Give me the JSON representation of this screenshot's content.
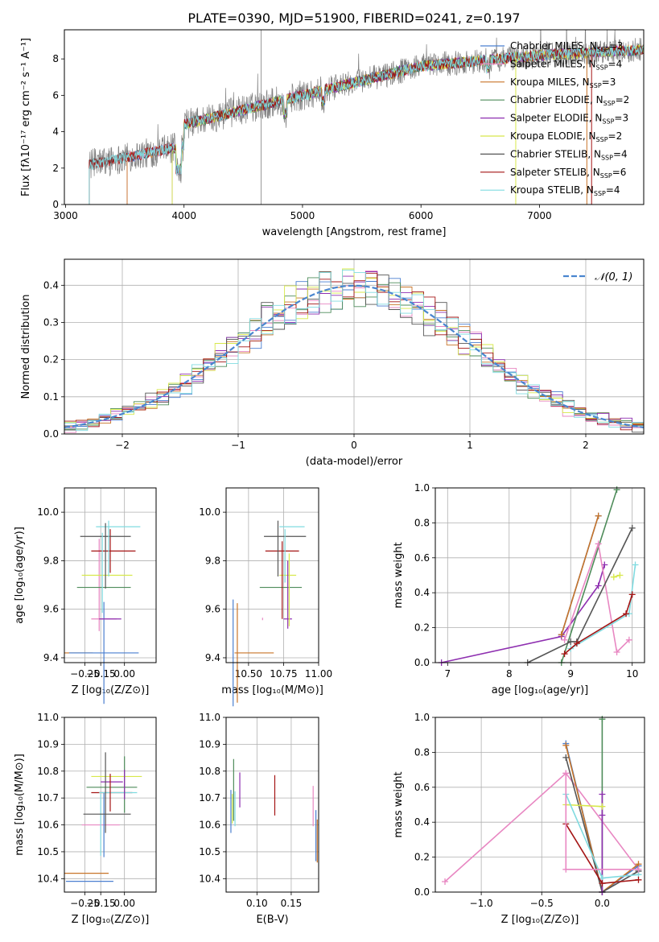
{
  "title": "PLATE=0390, MJD=51900, FIBERID=0241, z=0.197",
  "chart_data": [
    {
      "id": "spectrum",
      "type": "line",
      "xlabel": "wavelength [Angstrom, rest frame]",
      "ylabel": "Flux [fλ10⁻¹⁷ erg cm⁻² s⁻¹ A⁻¹]",
      "xlim": [
        2990,
        7880
      ],
      "ylim": [
        0,
        9.6
      ],
      "xticks": [
        "3000",
        "4000",
        "5000",
        "6000",
        "7000"
      ],
      "yticks": [
        "0",
        "2",
        "4",
        "6",
        "8"
      ],
      "legend_position": "upper-right",
      "series": [
        {
          "name": "Chabrier MILES, N",
          "sub": "SSP",
          "suffix": "=3",
          "color": "#4a7fd0",
          "start": 3520
        },
        {
          "name": "Salpeter MILES, N",
          "sub": "SSP",
          "suffix": "=4",
          "color": "#e887c2",
          "start": 3520
        },
        {
          "name": "Kroupa MILES, N",
          "sub": "SSP",
          "suffix": "=3",
          "color": "#c87428",
          "start": 3520
        },
        {
          "name": "Chabrier ELODIE, N",
          "sub": "SSP",
          "suffix": "=2",
          "color": "#4e8c5a",
          "start": 3900
        },
        {
          "name": "Salpeter ELODIE, N",
          "sub": "SSP",
          "suffix": "=3",
          "color": "#8e2fb0",
          "start": 3900
        },
        {
          "name": "Kroupa ELODIE, N",
          "sub": "SSP",
          "suffix": "=2",
          "color": "#d7e84a",
          "start": 3900
        },
        {
          "name": "Chabrier STELIB, N",
          "sub": "SSP",
          "suffix": "=4",
          "color": "#555555",
          "start": 3200
        },
        {
          "name": "Salpeter STELIB, N",
          "sub": "SSP",
          "suffix": "=6",
          "color": "#a41414",
          "start": 3200
        },
        {
          "name": "Kroupa STELIB, N",
          "sub": "SSP",
          "suffix": "=4",
          "color": "#80dbe0",
          "start": 3200
        }
      ],
      "data_color": "#808080"
    },
    {
      "id": "residuals",
      "type": "histogram",
      "xlabel": "(data-model)/error",
      "ylabel": "Normed distribution",
      "xlim": [
        -2.5,
        2.5
      ],
      "ylim": [
        0,
        0.47
      ],
      "xticks": [
        "−2",
        "−1",
        "0",
        "1",
        "2"
      ],
      "yticks": [
        "0.0",
        "0.1",
        "0.2",
        "0.3",
        "0.4"
      ],
      "legend": "𝒩(0, 1)",
      "legend_position": "upper-right",
      "grid": true
    },
    {
      "id": "age-vs-z",
      "type": "errorbar",
      "xlabel": "Z [log₁₀(Z/Z⊙)]",
      "ylabel": "age  [log₁₀(age/yr)]",
      "xlim": [
        -0.38,
        0.2
      ],
      "ylim": [
        9.38,
        10.1
      ],
      "xticks": [
        "−0.25",
        "−0.15",
        "0.00"
      ],
      "yticks": [
        "9.4",
        "9.6",
        "9.8",
        "10.0"
      ],
      "grid": true,
      "points": [
        {
          "x": -0.29,
          "y": 9.42,
          "xe": 0.09,
          "ye": 0.0,
          "color": "#c87428"
        },
        {
          "x": -0.13,
          "y": 9.42,
          "xe": 0.22,
          "ye": 0.42,
          "color": "#4a7fd0"
        },
        {
          "x": -0.13,
          "y": 9.56,
          "xe": 0.08,
          "ye": 0.0,
          "color": "#e887c2"
        },
        {
          "x": -0.16,
          "y": 9.7,
          "xe": 0.0,
          "ye": 0.38,
          "color": "#e887c2"
        },
        {
          "x": -0.13,
          "y": 9.69,
          "xe": 0.17,
          "ye": 0.0,
          "color": "#4e8c5a"
        },
        {
          "x": -0.09,
          "y": 9.56,
          "xe": 0.07,
          "ye": 0.0,
          "color": "#8e2fb0"
        },
        {
          "x": -0.09,
          "y": 9.84,
          "xe": 0.0,
          "ye": 0.18,
          "color": "#a41414"
        },
        {
          "x": -0.11,
          "y": 9.74,
          "xe": 0.16,
          "ye": 0.0,
          "color": "#d7e84a"
        },
        {
          "x": -0.12,
          "y": 9.9,
          "xe": 0.16,
          "ye": 0.0,
          "color": "#555555"
        },
        {
          "x": -0.07,
          "y": 9.84,
          "xe": 0.14,
          "ye": 0.0,
          "color": "#a41414"
        },
        {
          "x": -0.04,
          "y": 9.94,
          "xe": 0.14,
          "ye": 0.0,
          "color": "#80dbe0"
        },
        {
          "x": -0.12,
          "y": 9.82,
          "xe": 0.0,
          "ye": 0.27,
          "color": "#555555"
        },
        {
          "x": -0.1,
          "y": 9.85,
          "xe": 0.0,
          "ye": 0.23,
          "color": "#80dbe0"
        },
        {
          "x": -0.14,
          "y": 9.75,
          "xe": 0.0,
          "ye": 0.33,
          "color": "#80dbe0"
        }
      ]
    },
    {
      "id": "age-vs-mass",
      "type": "errorbar",
      "xlabel": "mass [log₁₀(M/M⊙)]",
      "ylabel": "",
      "xlim": [
        10.34,
        11.0
      ],
      "ylim": [
        9.38,
        10.1
      ],
      "xticks": [
        "10.50",
        "10.75",
        "11.00"
      ],
      "yticks": [
        "9.4",
        "9.6",
        "9.8",
        "10.0"
      ],
      "grid": true,
      "points": [
        {
          "x": 10.39,
          "y": 9.42,
          "xe": 0.0,
          "ye": 0.44,
          "color": "#4a7fd0"
        },
        {
          "x": 10.42,
          "y": 9.42,
          "xe": 0.0,
          "ye": 0.41,
          "color": "#c87428"
        },
        {
          "x": 10.54,
          "y": 9.42,
          "xe": 0.14,
          "ye": 0.0,
          "color": "#c87428"
        },
        {
          "x": 10.6,
          "y": 9.56,
          "xe": 0.0,
          "ye": 0.01,
          "color": "#e887c2"
        },
        {
          "x": 10.73,
          "y": 9.69,
          "xe": 0.15,
          "ye": 0.0,
          "color": "#4e8c5a"
        },
        {
          "x": 10.78,
          "y": 9.56,
          "xe": 0.03,
          "ye": 0.0,
          "color": "#8e2fb0"
        },
        {
          "x": 10.78,
          "y": 9.74,
          "xe": 0.06,
          "ye": 0.0,
          "color": "#d7e84a"
        },
        {
          "x": 10.76,
          "y": 9.9,
          "xe": 0.15,
          "ye": 0.0,
          "color": "#555555"
        },
        {
          "x": 10.74,
          "y": 9.84,
          "xe": 0.12,
          "ye": 0.0,
          "color": "#a41414"
        },
        {
          "x": 10.81,
          "y": 9.94,
          "xe": 0.09,
          "ye": 0.0,
          "color": "#80dbe0"
        },
        {
          "x": 10.71,
          "y": 9.85,
          "xe": 0.0,
          "ye": 0.23,
          "color": "#555555"
        },
        {
          "x": 10.76,
          "y": 9.82,
          "xe": 0.0,
          "ye": 0.22,
          "color": "#80dbe0"
        },
        {
          "x": 10.74,
          "y": 9.72,
          "xe": 0.0,
          "ye": 0.32,
          "color": "#a41414"
        },
        {
          "x": 10.78,
          "y": 9.66,
          "xe": 0.0,
          "ye": 0.28,
          "color": "#8e2fb0"
        },
        {
          "x": 10.79,
          "y": 9.68,
          "xe": 0.0,
          "ye": 0.3,
          "color": "#d7e84a"
        }
      ]
    },
    {
      "id": "mass-weight-vs-age",
      "type": "line",
      "xlabel": "age  [log₁₀(age/yr)]",
      "ylabel": "mass weight",
      "xlim": [
        6.8,
        10.2
      ],
      "ylim": [
        0,
        1.0
      ],
      "xticks": [
        "7",
        "8",
        "9",
        "10"
      ],
      "yticks": [
        "0.0",
        "0.2",
        "0.4",
        "0.6",
        "0.8",
        "1.0"
      ],
      "grid": true,
      "series": [
        {
          "color": "#8e2fb0",
          "x": [
            6.9,
            8.85,
            9.45,
            9.55
          ],
          "y": [
            0.0,
            0.15,
            0.44,
            0.56
          ]
        },
        {
          "color": "#4a7fd0",
          "x": [
            8.85,
            9.45
          ],
          "y": [
            0.16,
            0.84
          ]
        },
        {
          "color": "#c87428",
          "x": [
            8.85,
            9.45
          ],
          "y": [
            0.16,
            0.84
          ]
        },
        {
          "color": "#4e8c5a",
          "x": [
            8.85,
            9.75
          ],
          "y": [
            0.0,
            0.99
          ]
        },
        {
          "color": "#e887c2",
          "x": [
            8.9,
            9.45,
            9.75,
            9.95
          ],
          "y": [
            0.13,
            0.68,
            0.06,
            0.13
          ]
        },
        {
          "color": "#555555",
          "x": [
            8.3,
            9.0,
            9.1,
            10.0
          ],
          "y": [
            0.0,
            0.12,
            0.12,
            0.77
          ]
        },
        {
          "color": "#80dbe0",
          "x": [
            9.0,
            9.95,
            10.05
          ],
          "y": [
            0.08,
            0.28,
            0.56
          ]
        },
        {
          "color": "#a41414",
          "x": [
            8.9,
            9.1,
            9.9,
            10.0
          ],
          "y": [
            0.05,
            0.11,
            0.28,
            0.39
          ]
        },
        {
          "color": "#d7e84a",
          "x": [
            9.7,
            9.8
          ],
          "y": [
            0.49,
            0.5
          ]
        }
      ]
    },
    {
      "id": "mass-vs-z",
      "type": "errorbar",
      "xlabel": "Z [log₁₀(Z/Z⊙)]",
      "ylabel": "mass [log₁₀(M/M⊙)]",
      "xlim": [
        -0.38,
        0.2
      ],
      "ylim": [
        10.35,
        11.0
      ],
      "xticks": [
        "−0.25",
        "−0.15",
        "0.00"
      ],
      "yticks": [
        "10.4",
        "10.5",
        "10.6",
        "10.7",
        "10.8",
        "10.9",
        "11.0"
      ],
      "grid": true,
      "points": [
        {
          "x": -0.22,
          "y": 10.39,
          "xe": 0.15,
          "ye": 0.0,
          "color": "#4a7fd0"
        },
        {
          "x": -0.24,
          "y": 10.42,
          "xe": 0.14,
          "ye": 0.0,
          "color": "#c87428"
        },
        {
          "x": -0.15,
          "y": 10.6,
          "xe": 0.12,
          "ye": 0.0,
          "color": "#e887c2"
        },
        {
          "x": -0.15,
          "y": 10.6,
          "xe": 0.0,
          "ye": 0.23,
          "color": "#80dbe0"
        },
        {
          "x": -0.13,
          "y": 10.6,
          "xe": 0.0,
          "ye": 0.24,
          "color": "#4a7fd0"
        },
        {
          "x": -0.11,
          "y": 10.64,
          "xe": 0.15,
          "ye": 0.0,
          "color": "#555555"
        },
        {
          "x": -0.08,
          "y": 10.74,
          "xe": 0.16,
          "ye": 0.0,
          "color": "#4e8c5a"
        },
        {
          "x": -0.08,
          "y": 10.72,
          "xe": 0.13,
          "ye": 0.0,
          "color": "#a41414"
        },
        {
          "x": -0.08,
          "y": 10.76,
          "xe": 0.07,
          "ye": 0.0,
          "color": "#8e2fb0"
        },
        {
          "x": -0.05,
          "y": 10.78,
          "xe": 0.16,
          "ye": 0.0,
          "color": "#d7e84a"
        },
        {
          "x": -0.04,
          "y": 10.72,
          "xe": 0.12,
          "ye": 0.0,
          "color": "#80dbe0"
        },
        {
          "x": -0.09,
          "y": 10.72,
          "xe": 0.0,
          "ye": 0.14,
          "color": "#a41414"
        },
        {
          "x": -0.12,
          "y": 10.72,
          "xe": 0.0,
          "ye": 0.3,
          "color": "#555555"
        },
        {
          "x": 0.0,
          "y": 10.75,
          "xe": 0.0,
          "ye": 0.21,
          "color": "#4e8c5a"
        },
        {
          "x": 0.0,
          "y": 10.75,
          "xe": 0.0,
          "ye": 0.11,
          "color": "#8e2fb0"
        }
      ]
    },
    {
      "id": "mass-vs-ebv",
      "type": "errorbar",
      "xlabel": "E(B-V)",
      "ylabel": "",
      "xlim": [
        0.055,
        0.19
      ],
      "ylim": [
        10.35,
        11.0
      ],
      "xticks": [
        "0.10",
        "0.15"
      ],
      "yticks": [
        "10.4",
        "10.5",
        "10.6",
        "10.7",
        "10.8",
        "10.9",
        "11.0"
      ],
      "grid": true,
      "points": [
        {
          "x": 0.062,
          "y": 10.65,
          "xe": 0.0,
          "ye": 0.16,
          "color": "#4a7fd0"
        },
        {
          "x": 0.064,
          "y": 10.66,
          "xe": 0.0,
          "ye": 0.11,
          "color": "#d7e84a"
        },
        {
          "x": 0.066,
          "y": 10.73,
          "xe": 0.0,
          "ye": 0.23,
          "color": "#4e8c5a"
        },
        {
          "x": 0.068,
          "y": 10.66,
          "xe": 0.0,
          "ye": 0.13,
          "color": "#80dbe0"
        },
        {
          "x": 0.075,
          "y": 10.73,
          "xe": 0.0,
          "ye": 0.13,
          "color": "#8e2fb0"
        },
        {
          "x": 0.126,
          "y": 10.71,
          "xe": 0.0,
          "ye": 0.15,
          "color": "#a41414"
        },
        {
          "x": 0.182,
          "y": 10.67,
          "xe": 0.0,
          "ye": 0.15,
          "color": "#e887c2"
        },
        {
          "x": 0.186,
          "y": 10.56,
          "xe": 0.0,
          "ye": 0.19,
          "color": "#4a7fd0"
        },
        {
          "x": 0.188,
          "y": 10.54,
          "xe": 0.0,
          "ye": 0.16,
          "color": "#c87428"
        }
      ]
    },
    {
      "id": "mass-weight-vs-z",
      "type": "line",
      "xlabel": "Z [log₁₀(Z/Z⊙)]",
      "ylabel": "mass weight",
      "xlim": [
        -1.38,
        0.35
      ],
      "ylim": [
        0,
        1.0
      ],
      "xticks": [
        "−1.0",
        "−0.5",
        "0.0"
      ],
      "yticks": [
        "0.0",
        "0.2",
        "0.4",
        "0.6",
        "0.8",
        "1.0"
      ],
      "grid": true,
      "series": [
        {
          "color": "#e887c2",
          "x": [
            -1.3,
            -0.3,
            0.3
          ],
          "y": [
            0.06,
            0.68,
            0.13
          ]
        },
        {
          "color": "#4a7fd0",
          "x": [
            -0.3,
            0.0,
            0.3
          ],
          "y": [
            0.85,
            0.0,
            0.15
          ]
        },
        {
          "color": "#c87428",
          "x": [
            -0.3,
            0.0,
            0.3
          ],
          "y": [
            0.84,
            0.0,
            0.16
          ]
        },
        {
          "color": "#555555",
          "x": [
            -0.3,
            0.0,
            0.3
          ],
          "y": [
            0.77,
            0.0,
            0.12
          ]
        },
        {
          "color": "#4e8c5a",
          "x": [
            0.0,
            0.0
          ],
          "y": [
            0.0,
            0.99
          ]
        },
        {
          "color": "#8e2fb0",
          "x": [
            0.0,
            0.0,
            0.0
          ],
          "y": [
            0.0,
            0.44,
            0.56
          ]
        },
        {
          "color": "#d7e84a",
          "x": [
            -0.3,
            0.0
          ],
          "y": [
            0.5,
            0.49
          ]
        },
        {
          "color": "#80dbe0",
          "x": [
            -0.3,
            0.0,
            0.3
          ],
          "y": [
            0.56,
            0.08,
            0.1
          ]
        },
        {
          "color": "#a41414",
          "x": [
            -0.3,
            0.0,
            0.3
          ],
          "y": [
            0.39,
            0.05,
            0.07
          ]
        },
        {
          "color": "#e887c2",
          "x": [
            -0.3,
            -0.3,
            0.3
          ],
          "y": [
            0.68,
            0.13,
            0.13
          ]
        }
      ]
    }
  ]
}
